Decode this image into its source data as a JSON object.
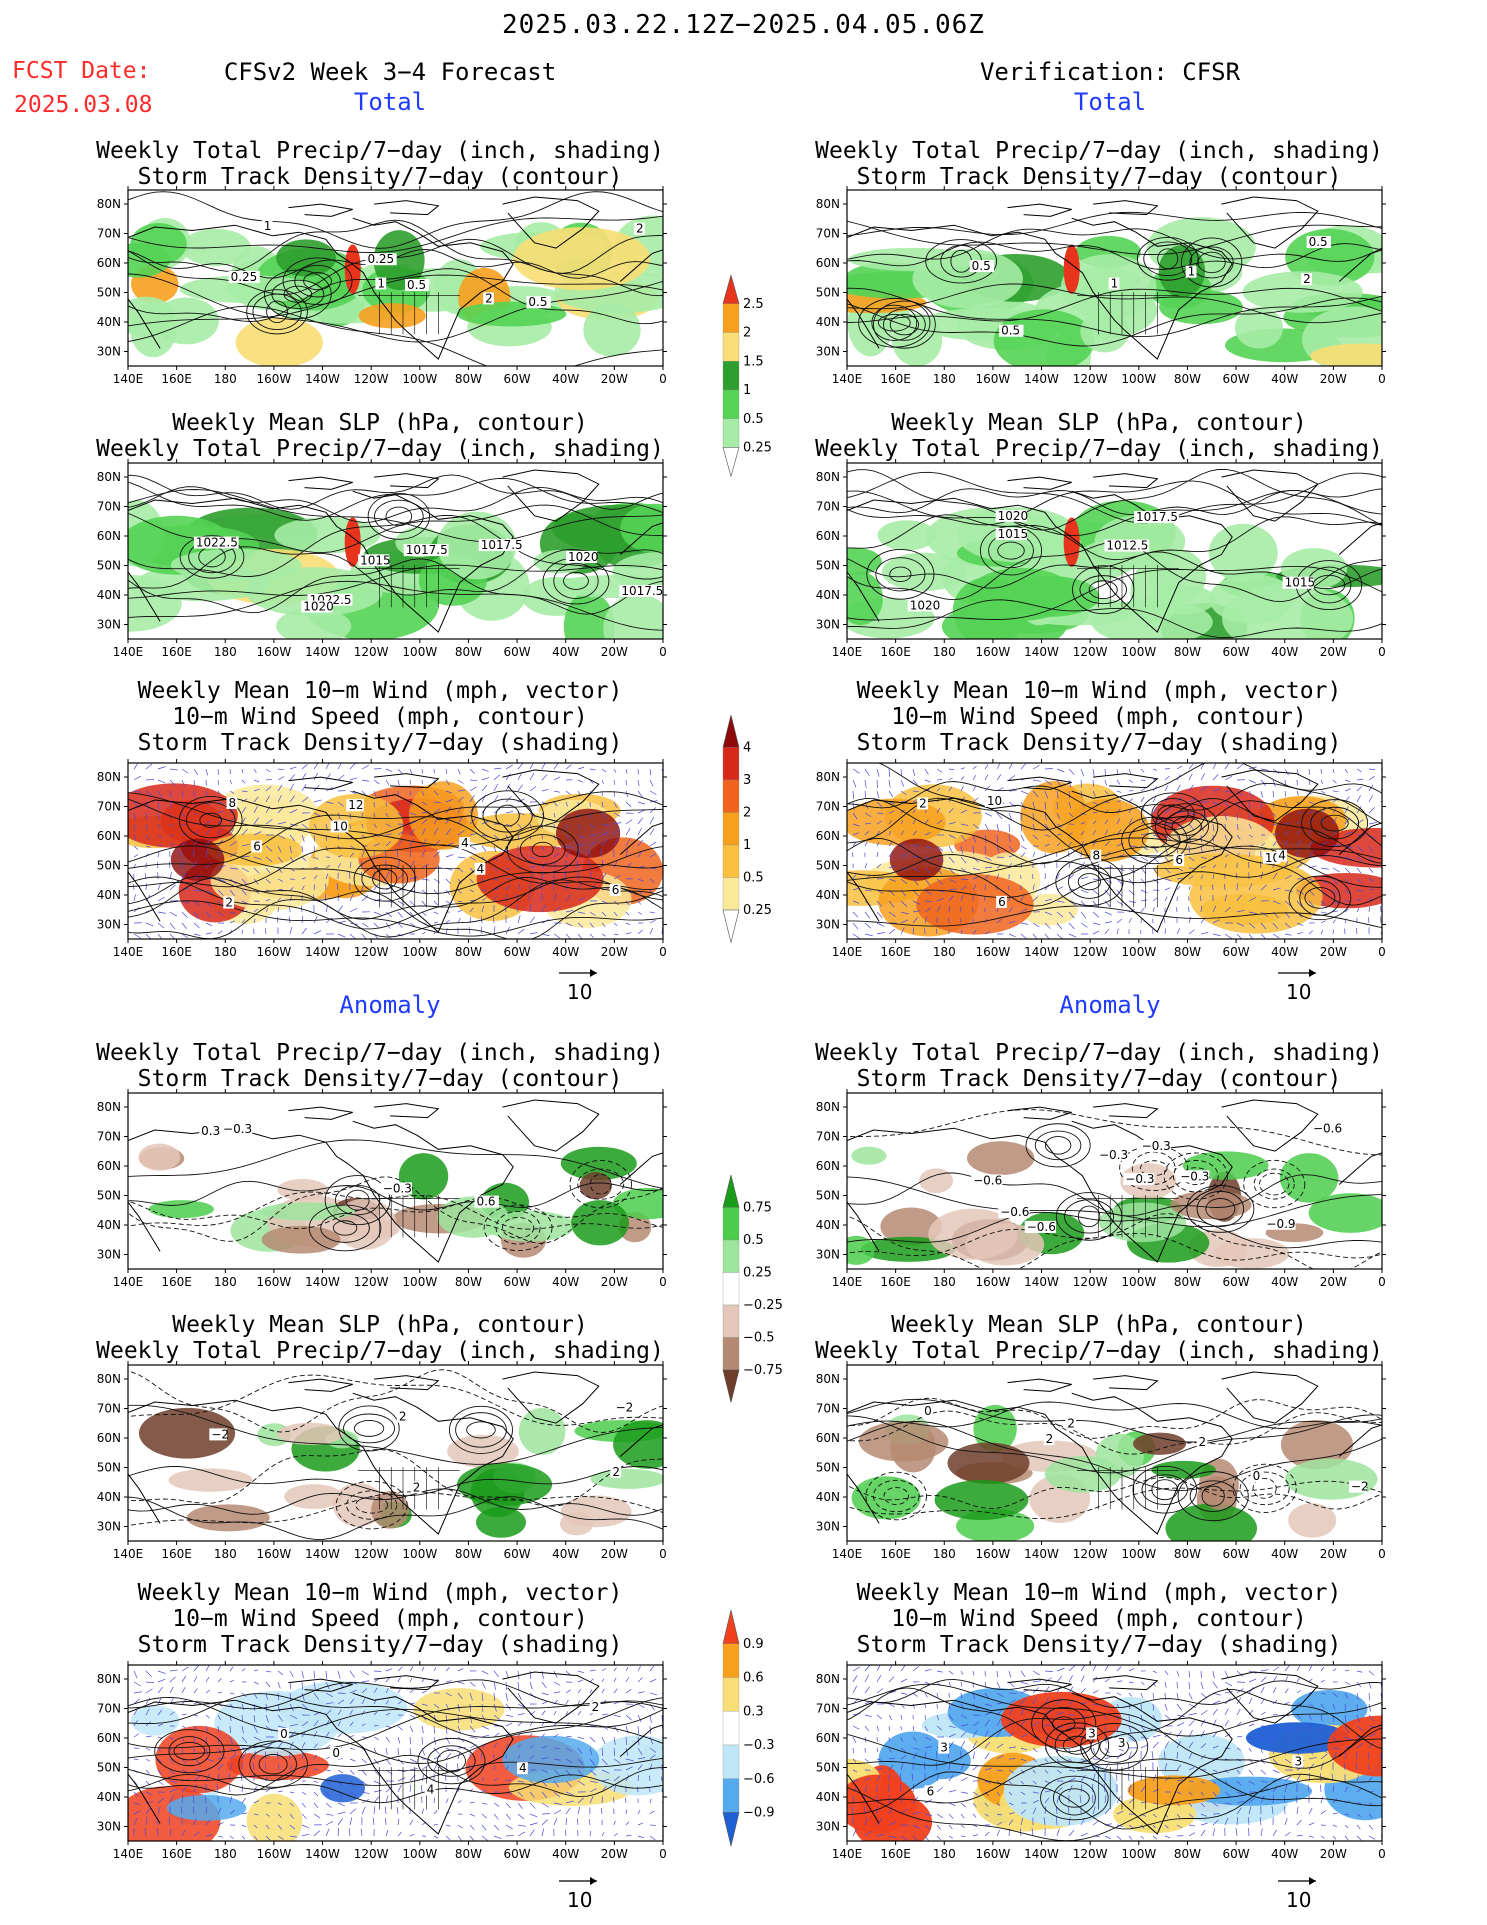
{
  "header": {
    "date_range": "2025.03.22.12Z−2025.04.05.06Z",
    "fcst_label": "FCST Date:",
    "fcst_date": "2025.03.08",
    "left_title": "CFSv2 Week 3−4 Forecast",
    "right_title": "Verification: CFSR"
  },
  "sections": {
    "total": "Total",
    "anomaly": "Anomaly"
  },
  "panel_titles": {
    "precip_storm": [
      "Weekly Total Precip/7−day (inch, shading)",
      "Storm Track Density/7−day (contour)"
    ],
    "slp_precip": [
      "Weekly Mean SLP (hPa, contour)",
      "Weekly Total Precip/7−day (inch, shading)"
    ],
    "wind_storm": [
      "Weekly Mean 10−m Wind (mph, vector)",
      "10−m Wind Speed (mph, contour)",
      "Storm Track Density/7−day (shading)"
    ]
  },
  "axes": {
    "lat_labels": [
      "80N",
      "70N",
      "60N",
      "50N",
      "40N",
      "30N"
    ],
    "lon_labels": [
      "140E",
      "160E",
      "180",
      "160W",
      "140W",
      "120W",
      "100W",
      "80W",
      "60W",
      "40W",
      "20W",
      "0"
    ]
  },
  "vector_ref": "10",
  "colorbars": {
    "precip_total": {
      "labels": [
        "2.5",
        "2",
        "1.5",
        "1",
        "0.5",
        "0.25"
      ],
      "colors": [
        "#e8341c",
        "#f7a01e",
        "#f8de74",
        "#2e9e2e",
        "#54d354",
        "#a6eca6",
        "#ffffff"
      ]
    },
    "storm_total": {
      "labels": [
        "4",
        "3",
        "2",
        "1",
        "0.5",
        "0.25"
      ],
      "colors": [
        "#8c0a0a",
        "#d8281a",
        "#f0641e",
        "#f7a01e",
        "#f8c03e",
        "#fbe99a",
        "#ffffff"
      ]
    },
    "precip_anom": {
      "labels": [
        "0.75",
        "0.5",
        "0.25",
        "−0.25",
        "−0.5",
        "−0.75"
      ],
      "colors": [
        "#1a9b1a",
        "#4ccc4c",
        "#9de49d",
        "#ffffff",
        "#e4c7b8",
        "#b58a72",
        "#6e3e2a"
      ]
    },
    "storm_anom": {
      "labels": [
        "0.9",
        "0.6",
        "0.3",
        "−0.3",
        "−0.6",
        "−0.9"
      ],
      "colors": [
        "#f0401e",
        "#f7a01e",
        "#f8de74",
        "#ffffff",
        "#bfe6f7",
        "#55aaee",
        "#1e5fd6"
      ]
    }
  },
  "contour_labels": {
    "t_fp": [
      "0.25",
      "0.5",
      "2",
      "1",
      "0.5",
      "0.25",
      "2",
      "1"
    ],
    "t_vp": [
      "0.5",
      "1",
      "0.5",
      "1",
      "2",
      "0.5"
    ],
    "t_fs": [
      "1022.5",
      "1017.5",
      "1017.5",
      "1015",
      "1020",
      "1022.5",
      "1017.5",
      "1020"
    ],
    "t_vs": [
      "1015",
      "1012.5",
      "1020",
      "1017.5",
      "1015",
      "1020"
    ],
    "t_fw": [
      "6",
      "4",
      "8",
      "10",
      "6",
      "12",
      "4",
      "2"
    ],
    "t_vw": [
      "10",
      "6",
      "2",
      "8",
      "10",
      "6",
      "4"
    ],
    "a_fp": [
      "−0.3",
      "0.6",
      "0.3",
      "−0.3"
    ],
    "a_vp": [
      "−0.6",
      "−0.3",
      "−0.6",
      "−0.3",
      "−0.9",
      "−0.6",
      "−0.3",
      "−0.6",
      "−0.3"
    ],
    "a_fs": [
      "−2",
      "2",
      "−2",
      "2",
      "2"
    ],
    "a_vs": [
      "0",
      "2",
      "−2",
      "2",
      "0",
      "2"
    ],
    "a_fw": [
      "0",
      "4",
      "2",
      "0",
      "4"
    ],
    "a_vw": [
      "3",
      "3",
      "6",
      "3",
      "3"
    ]
  }
}
